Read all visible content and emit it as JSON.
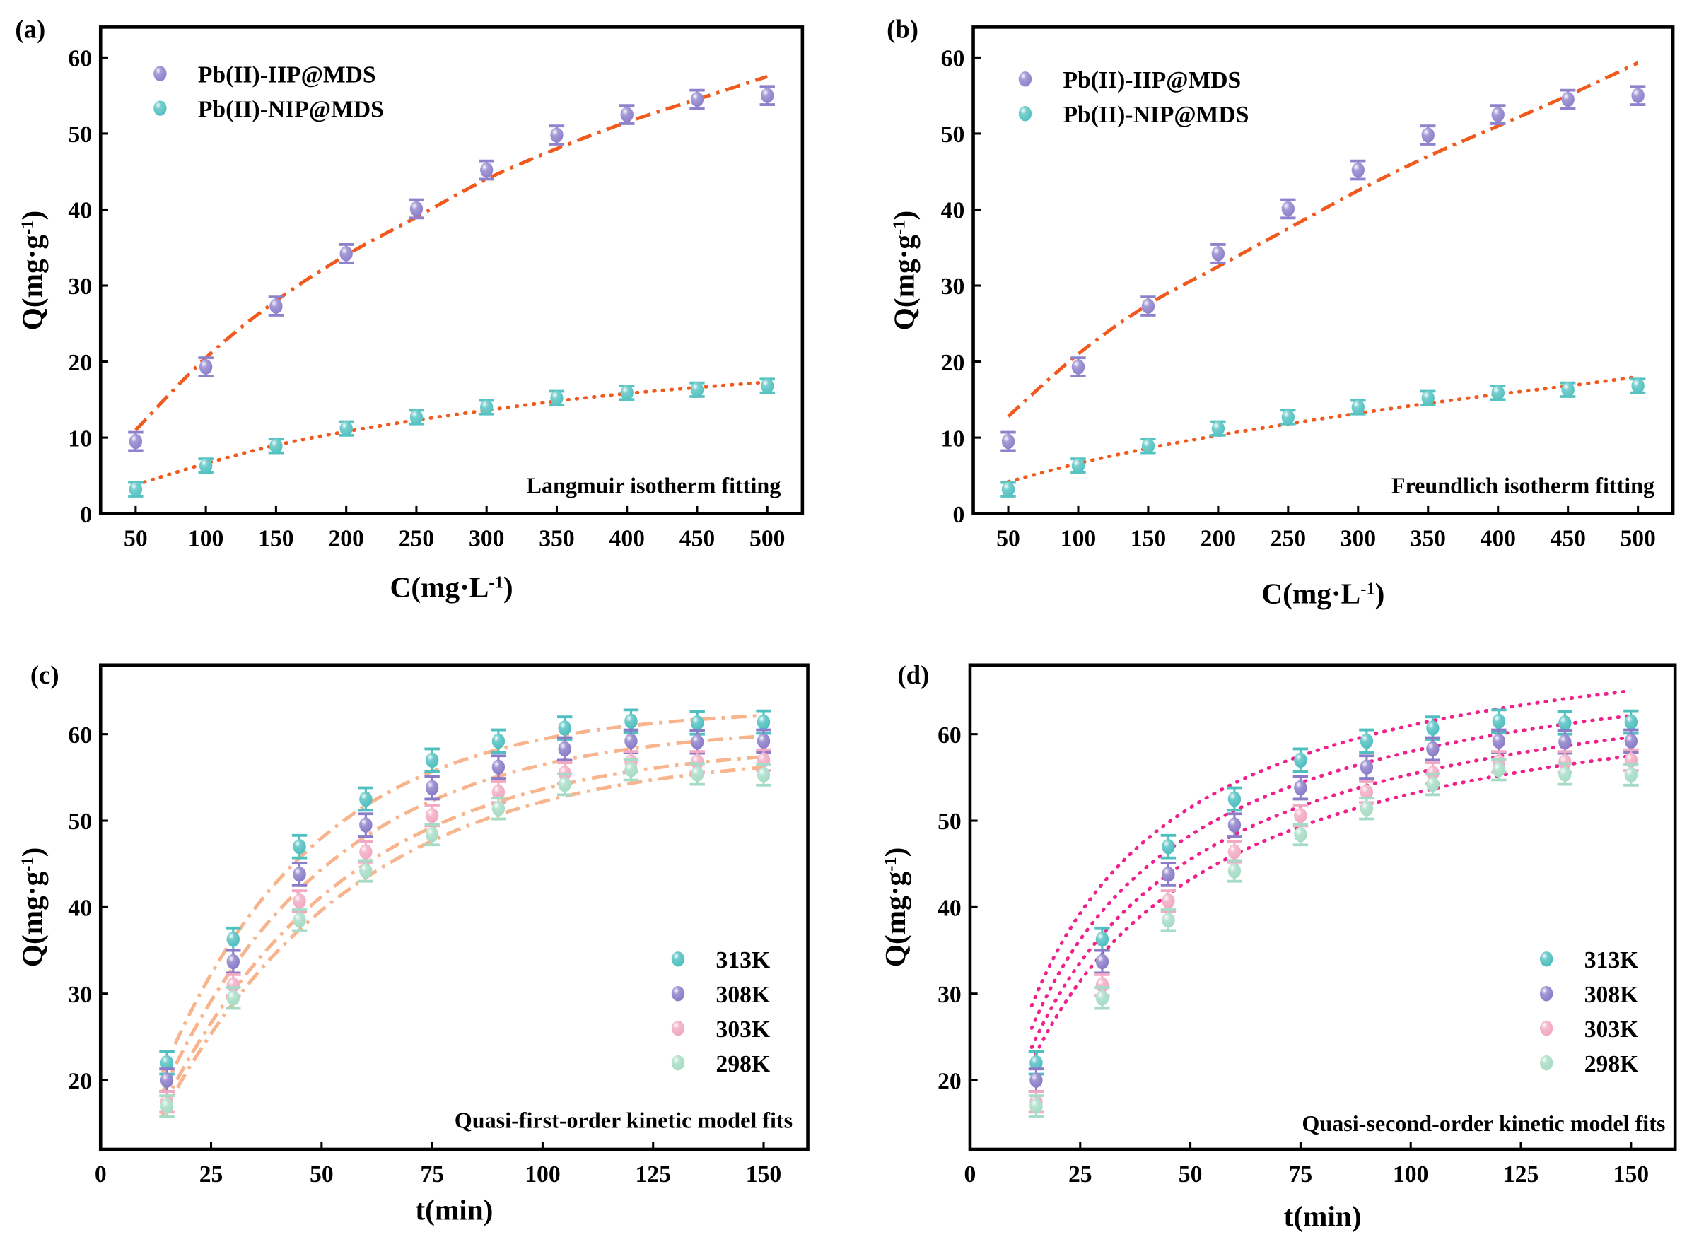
{
  "chart_data": [
    {
      "panel_label": "(a)",
      "type": "scatter",
      "annotation": "Langmuir isotherm fitting",
      "xlabel": {
        "base": "C(mg·L",
        "sup": "-1",
        "end": ")"
      },
      "ylabel": {
        "base": "Q(mg·g",
        "sup": "-1",
        "end": ")"
      },
      "xlim": [
        25,
        525
      ],
      "ylim": [
        0,
        64
      ],
      "xticks": [
        50,
        100,
        150,
        200,
        250,
        300,
        350,
        400,
        450,
        500
      ],
      "yticks": [
        0,
        10,
        20,
        30,
        40,
        50,
        60
      ],
      "legend_position": "top-left",
      "x": [
        50,
        100,
        150,
        200,
        250,
        300,
        350,
        400,
        450,
        500
      ],
      "series": [
        {
          "name": "Pb(II)-IIP@MDS",
          "color": "#8f82cc",
          "values": [
            9.5,
            19.3,
            27.3,
            34.2,
            40.1,
            45.2,
            49.8,
            52.5,
            54.5,
            55.0
          ],
          "error": 1.2,
          "fit": {
            "style": "dash-dot",
            "color": "#f05a1e",
            "values": [
              11,
              20.5,
              28,
              34,
              39,
              44,
              48,
              51.5,
              54.5,
              57.5
            ]
          }
        },
        {
          "name": "Pb(II)-NIP@MDS",
          "color": "#55c2c2",
          "values": [
            3.2,
            6.3,
            8.9,
            11.2,
            12.7,
            14.0,
            15.2,
            15.9,
            16.3,
            16.8
          ],
          "error": 0.9,
          "fit": {
            "style": "dotted",
            "color": "#f05a1e",
            "values": [
              3.8,
              6.6,
              9.0,
              10.8,
              12.3,
              13.6,
              14.8,
              15.8,
              16.6,
              17.3
            ]
          }
        }
      ]
    },
    {
      "panel_label": "(b)",
      "type": "scatter",
      "annotation": "Freundlich isotherm fitting",
      "xlabel": {
        "base": "C(mg·L",
        "sup": "-1",
        "end": ")"
      },
      "ylabel": {
        "base": "Q(mg·g",
        "sup": "-1",
        "end": ")"
      },
      "xlim": [
        25,
        525
      ],
      "ylim": [
        0,
        64
      ],
      "xticks": [
        50,
        100,
        150,
        200,
        250,
        300,
        350,
        400,
        450,
        500
      ],
      "yticks": [
        0,
        10,
        20,
        30,
        40,
        50,
        60
      ],
      "legend_position": "top-left",
      "x": [
        50,
        100,
        150,
        200,
        250,
        300,
        350,
        400,
        450,
        500
      ],
      "series": [
        {
          "name": "Pb(II)-IIP@MDS",
          "color": "#8f82cc",
          "values": [
            9.5,
            19.3,
            27.3,
            34.2,
            40.1,
            45.2,
            49.8,
            52.5,
            54.5,
            55.0
          ],
          "error": 1.2,
          "fit": {
            "style": "dash-dot",
            "color": "#f05a1e",
            "values": [
              12.8,
              21,
              27.5,
              32.5,
              37.5,
              42.5,
              47,
              51,
              55,
              59.3
            ]
          }
        },
        {
          "name": "Pb(II)-NIP@MDS",
          "color": "#55c2c2",
          "values": [
            3.2,
            6.3,
            8.9,
            11.2,
            12.7,
            14.0,
            15.2,
            15.9,
            16.3,
            16.8
          ],
          "error": 0.9,
          "fit": {
            "style": "dotted",
            "color": "#f05a1e",
            "values": [
              4.2,
              6.6,
              8.6,
              10.3,
              11.8,
              13.2,
              14.5,
              15.7,
              16.8,
              18.0
            ]
          }
        }
      ]
    },
    {
      "panel_label": "(c)",
      "type": "scatter",
      "annotation": "Quasi-first-order kinetic model fits",
      "xlabel": {
        "base": "t(min)",
        "sup": "",
        "end": ""
      },
      "ylabel": {
        "base": "Q(mg·g",
        "sup": "-1",
        "end": ")"
      },
      "xlim": [
        0,
        160
      ],
      "ylim": [
        12,
        68
      ],
      "xticks": [
        0,
        25,
        50,
        75,
        100,
        125,
        150
      ],
      "yticks": [
        20,
        30,
        40,
        50,
        60
      ],
      "legend_position": "right",
      "x": [
        15,
        30,
        45,
        60,
        75,
        90,
        105,
        120,
        135,
        150
      ],
      "series": [
        {
          "name": "313K",
          "color": "#4fbfc0",
          "values": [
            22,
            36.3,
            47,
            52.5,
            57,
            59.2,
            60.7,
            61.5,
            61.3,
            61.4
          ],
          "error": 1.3,
          "fit": {
            "model": "first-order",
            "style": "dash-dot",
            "color": "#f8b48c",
            "qe": 63,
            "k": 0.0287
          }
        },
        {
          "name": "308K",
          "color": "#8a7cc8",
          "values": [
            20,
            33.7,
            43.8,
            49.5,
            53.8,
            56.2,
            58.3,
            59.2,
            59.1,
            59.2
          ],
          "error": 1.3,
          "fit": {
            "model": "first-order",
            "style": "dash-dot",
            "color": "#f8b48c",
            "qe": 61,
            "k": 0.026
          }
        },
        {
          "name": "303K",
          "color": "#f2a9c2",
          "values": [
            17.5,
            31,
            40.7,
            46.4,
            50.6,
            53.3,
            55.5,
            56.8,
            56.8,
            57
          ],
          "error": 1.2,
          "fit": {
            "model": "first-order",
            "style": "dash-dot",
            "color": "#f8b48c",
            "qe": 59,
            "k": 0.024
          }
        },
        {
          "name": "298K",
          "color": "#a6dcc6",
          "values": [
            17,
            29.5,
            38.5,
            44.2,
            48.4,
            51.4,
            54.2,
            55.9,
            55.4,
            55.3
          ],
          "error": 1.2,
          "fit": {
            "model": "first-order",
            "style": "dash-dot",
            "color": "#f8b48c",
            "qe": 58,
            "k": 0.023
          }
        }
      ]
    },
    {
      "panel_label": "(d)",
      "type": "scatter",
      "annotation": "Quasi-second-order kinetic model fits",
      "xlabel": {
        "base": "t(min)",
        "sup": "",
        "end": ""
      },
      "ylabel": {
        "base": "Q(mg·g",
        "sup": "-1",
        "end": ")"
      },
      "xlim": [
        0,
        160
      ],
      "ylim": [
        12,
        68
      ],
      "xticks": [
        0,
        25,
        50,
        75,
        100,
        125,
        150
      ],
      "yticks": [
        20,
        30,
        40,
        50,
        60
      ],
      "legend_position": "right",
      "x": [
        15,
        30,
        45,
        60,
        75,
        90,
        105,
        120,
        135,
        150
      ],
      "series": [
        {
          "name": "313K",
          "color": "#4fbfc0",
          "values": [
            22,
            36.3,
            47,
            52.5,
            57,
            59.2,
            60.7,
            61.5,
            61.3,
            61.4
          ],
          "error": 1.3,
          "fit": {
            "model": "second-order",
            "style": "dotted",
            "color": "#f0208c",
            "qe": 74.8,
            "a": 0.302
          }
        },
        {
          "name": "308K",
          "color": "#8a7cc8",
          "values": [
            20,
            33.7,
            43.8,
            49.5,
            53.8,
            56.2,
            58.3,
            59.2,
            59.1,
            59.2
          ],
          "error": 1.3,
          "fit": {
            "model": "second-order",
            "style": "dotted",
            "color": "#f0208c",
            "qe": 72.5,
            "a": 0.345
          }
        },
        {
          "name": "303K",
          "color": "#f2a9c2",
          "values": [
            17.5,
            31,
            40.7,
            46.4,
            50.6,
            53.3,
            55.5,
            56.8,
            56.8,
            57
          ],
          "error": 1.2,
          "fit": {
            "model": "second-order",
            "style": "dotted",
            "color": "#f0208c",
            "qe": 70.6,
            "a": 0.39
          }
        },
        {
          "name": "298K",
          "color": "#a6dcc6",
          "values": [
            17,
            29.5,
            38.5,
            44.2,
            48.4,
            51.4,
            54.2,
            55.9,
            55.4,
            55.3
          ],
          "error": 1.2,
          "fit": {
            "model": "second-order",
            "style": "dotted",
            "color": "#f0208c",
            "qe": 68.9,
            "a": 0.432
          }
        }
      ]
    }
  ]
}
